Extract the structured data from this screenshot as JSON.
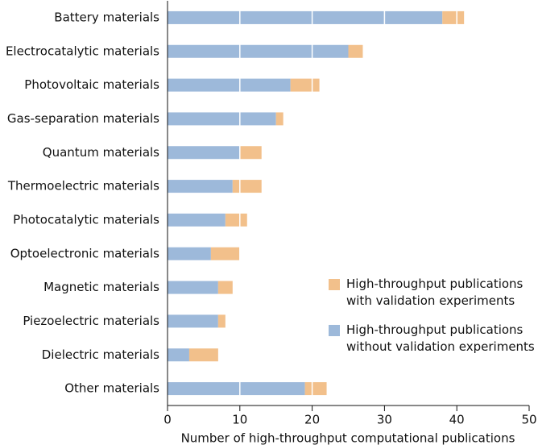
{
  "chart_data": {
    "type": "stacked_bar_horizontal",
    "categories": [
      "Battery materials",
      "Electrocatalytic materials",
      "Photovoltaic materials",
      "Gas-separation materials",
      "Quantum materials",
      "Thermoelectric materials",
      "Photocatalytic materials",
      "Optoelectronic materials",
      "Magnetic materials",
      "Piezoelectric materials",
      "Dielectric materials",
      "Other materials"
    ],
    "series": [
      {
        "name": "High-throughput publications without validation experiments",
        "color": "#9db9da",
        "values": [
          38,
          25,
          17,
          15,
          10,
          9,
          8,
          6,
          7,
          7,
          3,
          19
        ]
      },
      {
        "name": "High-throughput publications with validation experiments",
        "color": "#f2c08b",
        "values": [
          3,
          2,
          4,
          1,
          3,
          4,
          3,
          4,
          2,
          1,
          4,
          3
        ]
      }
    ],
    "xlabel": "Number of high-throughput computational publications",
    "xlim": [
      0,
      50
    ],
    "xticks": [
      0,
      10,
      20,
      30,
      40,
      50
    ],
    "grid": true,
    "legend": "right"
  }
}
